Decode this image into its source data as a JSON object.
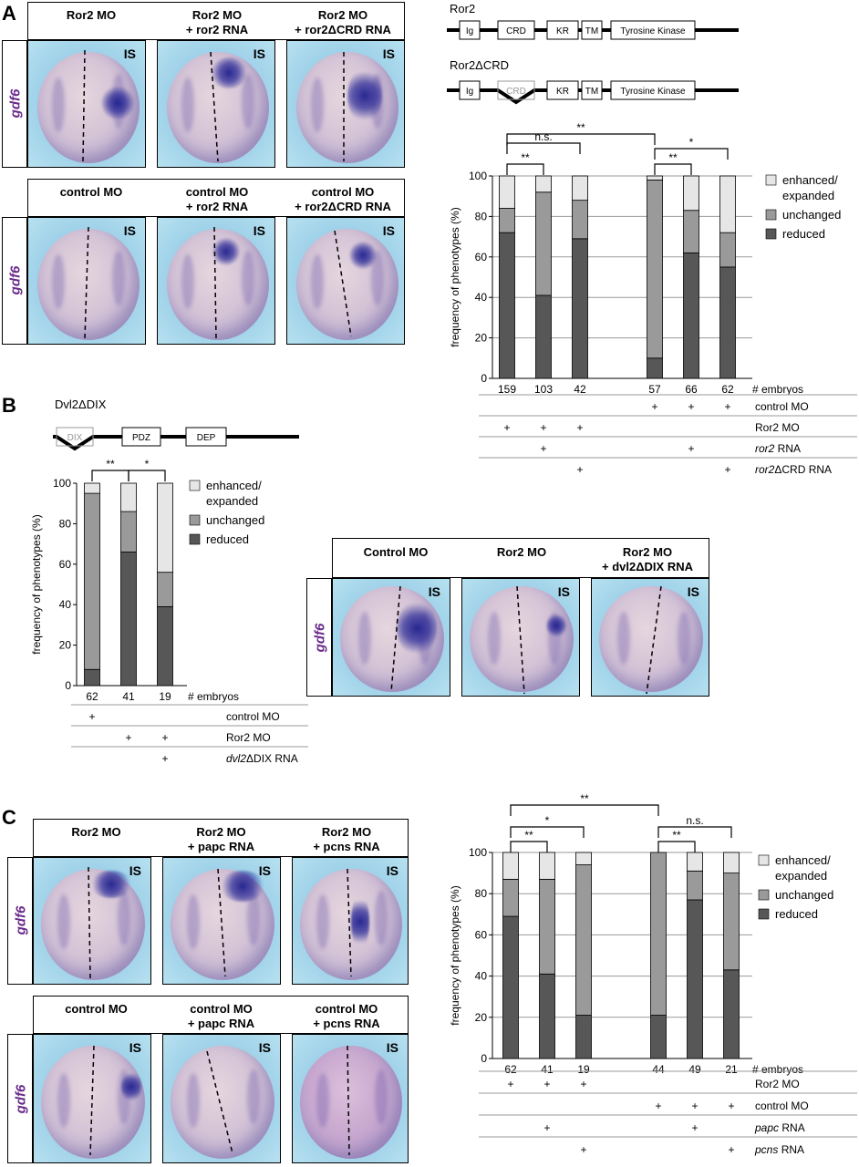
{
  "panel_letters": [
    "A",
    "B",
    "C"
  ],
  "is_label": "IS",
  "gene": "gdf6",
  "panelA": {
    "top_headers": [
      {
        "line1": "Ror2 MO",
        "line2": ""
      },
      {
        "line1": "Ror2 MO",
        "line2": "+ ror2 RNA"
      },
      {
        "line1": "Ror2 MO",
        "line2": "+ ror2ΔCRD RNA"
      }
    ],
    "bottom_headers": [
      {
        "line1": "control MO",
        "line2": ""
      },
      {
        "line1": "control MO",
        "line2": "+ ror2 RNA"
      },
      {
        "line1": "control MO",
        "line2": "+ ror2ΔCRD RNA"
      }
    ],
    "domains_ror2": {
      "title": "Ror2",
      "boxes": [
        "Ig",
        "CRD",
        "KR",
        "TM",
        "Tyrosine Kinase"
      ]
    },
    "domains_ror2dcrd": {
      "title": "Ror2ΔCRD",
      "boxes": [
        "Ig",
        "CRD",
        "KR",
        "TM",
        "Tyrosine Kinase"
      ]
    },
    "table_rows": [
      "control MO",
      "Ror2 MO",
      "ror2 RNA",
      "ror2ΔCRD RNA"
    ],
    "plus_sign": "+"
  },
  "panelB": {
    "domain_title": "Dvl2ΔDIX",
    "domain_boxes": [
      "DIX",
      "PDZ",
      "DEP"
    ],
    "headers": [
      {
        "line1": "Control MO",
        "line2": ""
      },
      {
        "line1": "Ror2 MO",
        "line2": ""
      },
      {
        "line1": "Ror2 MO",
        "line2": "+ dvl2ΔDIX RNA"
      }
    ],
    "table_rows": [
      "control MO",
      "Ror2 MO",
      "dvl2ΔDIX RNA"
    ]
  },
  "panelC": {
    "top_headers": [
      {
        "line1": "Ror2 MO",
        "line2": ""
      },
      {
        "line1": "Ror2 MO",
        "line2": "+ papc RNA"
      },
      {
        "line1": "Ror2 MO",
        "line2": "+ pcns RNA"
      }
    ],
    "bottom_headers": [
      {
        "line1": "control MO",
        "line2": ""
      },
      {
        "line1": "control MO",
        "line2": "+ papc RNA"
      },
      {
        "line1": "control MO",
        "line2": "+ pcns RNA"
      }
    ],
    "table_rows": [
      "Ror2 MO",
      "control MO",
      "papc RNA",
      "pcns RNA"
    ]
  },
  "colors": {
    "reduced": "#575757",
    "unchanged": "#9a9a9a",
    "enhanced": "#e6e6e6",
    "gene_label": "#6a2a8a"
  },
  "chart_data": [
    {
      "type": "bar",
      "stacked": true,
      "panel": "A",
      "ylabel": "frequency of phenotypes (%)",
      "ylim": [
        0,
        100
      ],
      "yticks": [
        0,
        20,
        40,
        60,
        80,
        100
      ],
      "grid": true,
      "legend_position": "right",
      "embryo_label": "# embryos",
      "categories": [
        "159",
        "103",
        "42",
        "57",
        "66",
        "62"
      ],
      "series": [
        {
          "name": "reduced",
          "values": [
            72,
            41,
            69,
            10,
            62,
            55
          ]
        },
        {
          "name": "unchanged",
          "values": [
            12,
            51,
            19,
            88,
            21,
            17
          ]
        },
        {
          "name": "enhanced/ expanded",
          "values": [
            16,
            8,
            12,
            2,
            17,
            28
          ]
        }
      ],
      "legend": [
        "enhanced/",
        "expanded",
        "unchanged",
        "reduced"
      ],
      "significance": [
        "**",
        "n.s.",
        "**",
        "**",
        "*"
      ],
      "table": {
        "control MO": [
          false,
          false,
          false,
          true,
          true,
          true
        ],
        "Ror2 MO": [
          true,
          true,
          true,
          false,
          false,
          false
        ],
        "ror2 RNA": [
          false,
          true,
          false,
          false,
          true,
          false
        ],
        "ror2ΔCRD RNA": [
          false,
          false,
          true,
          false,
          false,
          true
        ]
      }
    },
    {
      "type": "bar",
      "stacked": true,
      "panel": "B",
      "ylabel": "frequency of phenotypes (%)",
      "ylim": [
        0,
        100
      ],
      "yticks": [
        0,
        20,
        40,
        60,
        80,
        100
      ],
      "grid": false,
      "legend_position": "right",
      "embryo_label": "# embryos",
      "categories": [
        "62",
        "41",
        "19"
      ],
      "series": [
        {
          "name": "reduced",
          "values": [
            8,
            66,
            39
          ]
        },
        {
          "name": "unchanged",
          "values": [
            87,
            20,
            17
          ]
        },
        {
          "name": "enhanced/ expanded",
          "values": [
            5,
            14,
            44
          ]
        }
      ],
      "legend": [
        "enhanced/",
        "expanded",
        "unchanged",
        "reduced"
      ],
      "significance": [
        "**",
        "*"
      ],
      "table": {
        "control MO": [
          true,
          false,
          false
        ],
        "Ror2 MO": [
          false,
          true,
          true
        ],
        "dvl2ΔDIX RNA": [
          false,
          false,
          true
        ]
      }
    },
    {
      "type": "bar",
      "stacked": true,
      "panel": "C",
      "ylabel": "frequency of phenotypes (%)",
      "ylim": [
        0,
        100
      ],
      "yticks": [
        0,
        20,
        40,
        60,
        80,
        100
      ],
      "grid": true,
      "legend_position": "right",
      "embryo_label": "# embryos",
      "categories": [
        "62",
        "41",
        "19",
        "44",
        "49",
        "21"
      ],
      "series": [
        {
          "name": "reduced",
          "values": [
            69,
            41,
            21,
            21,
            77,
            43
          ]
        },
        {
          "name": "unchanged",
          "values": [
            18,
            46,
            73,
            79,
            14,
            47
          ]
        },
        {
          "name": "enhanced/ expanded",
          "values": [
            13,
            13,
            6,
            0,
            9,
            10
          ]
        }
      ],
      "legend": [
        "enhanced/",
        "expanded",
        "unchanged",
        "reduced"
      ],
      "significance": [
        "**",
        "*",
        "**",
        "**",
        "n.s."
      ],
      "table": {
        "Ror2 MO": [
          true,
          true,
          true,
          false,
          false,
          false
        ],
        "control MO": [
          false,
          false,
          false,
          true,
          true,
          true
        ],
        "papc RNA": [
          false,
          true,
          false,
          false,
          true,
          false
        ],
        "pcns RNA": [
          false,
          false,
          true,
          false,
          false,
          true
        ]
      }
    }
  ]
}
